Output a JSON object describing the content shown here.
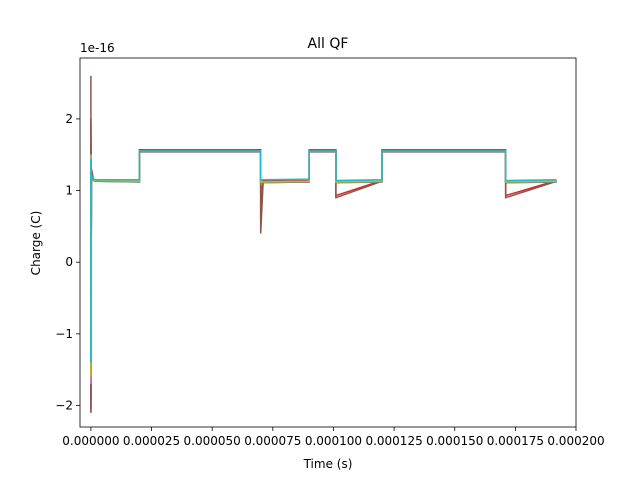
{
  "chart_data": {
    "type": "line",
    "title": "All QF",
    "xlabel": "Time (s)",
    "ylabel": "Charge (C)",
    "y_offset_label": "1e-16",
    "xlim": [
      -4.5e-06,
      0.0002
    ],
    "ylim": [
      -2.3,
      2.85
    ],
    "y_multiplier": 1e-16,
    "grid": false,
    "legend": "none",
    "x_ticks": [
      0,
      2.5e-05,
      5e-05,
      7.5e-05,
      0.0001,
      0.000125,
      0.00015,
      0.000175,
      0.0002
    ],
    "x_tick_labels": [
      "0.000000",
      "0.000025",
      "0.000050",
      "0.000075",
      "0.000100",
      "0.000125",
      "0.000150",
      "0.000175",
      "0.000200"
    ],
    "y_ticks": [
      -2,
      -1,
      0,
      1,
      2
    ],
    "y_tick_labels": [
      "−2",
      "−1",
      "0",
      "1",
      "2"
    ],
    "colors": [
      "#1f77b4",
      "#ff7f0e",
      "#2ca02c",
      "#d62728",
      "#9467bd",
      "#8c564b",
      "#e377c2",
      "#7f7f7f",
      "#bcbd22",
      "#17becf"
    ],
    "series": [
      {
        "color": "#1f77b4",
        "x": [
          0,
          0,
          0,
          2e-07,
          1e-06,
          2e-06,
          2e-05,
          2e-05,
          7e-05,
          7e-05,
          7.1e-05,
          9e-05,
          9e-05,
          0.000101,
          0.000101,
          0.00012,
          0.00012,
          0.000171,
          0.000171,
          0.000192
        ],
        "y": [
          1.0,
          1.9,
          -2.0,
          1.3,
          1.15,
          1.14,
          1.13,
          1.55,
          1.55,
          1.12,
          1.12,
          1.13,
          1.55,
          1.55,
          1.12,
          1.13,
          1.55,
          1.55,
          1.12,
          1.13
        ]
      },
      {
        "color": "#ff7f0e",
        "x": [
          0,
          0,
          0,
          2e-07,
          1e-06,
          2e-06,
          2e-05,
          2e-05,
          7e-05,
          7e-05,
          7.1e-05,
          9e-05,
          9e-05,
          0.000101,
          0.000101,
          0.00012,
          0.00012,
          0.000171,
          0.000171,
          0.000192
        ],
        "y": [
          1.1,
          1.7,
          -1.9,
          1.25,
          1.16,
          1.15,
          1.14,
          1.55,
          1.55,
          1.13,
          1.13,
          1.14,
          1.55,
          1.55,
          1.13,
          1.14,
          1.55,
          1.55,
          1.13,
          1.14
        ]
      },
      {
        "color": "#2ca02c",
        "x": [
          0,
          0,
          0,
          2e-07,
          1e-06,
          2e-06,
          2e-05,
          2e-05,
          7e-05,
          7e-05,
          7.1e-05,
          9e-05,
          9e-05,
          0.000101,
          0.000101,
          0.00012,
          0.00012,
          0.000171,
          0.000171,
          0.000192
        ],
        "y": [
          1.2,
          1.6,
          -1.8,
          1.22,
          1.15,
          1.14,
          1.13,
          1.55,
          1.55,
          0.95,
          1.12,
          1.13,
          1.55,
          1.55,
          1.12,
          1.13,
          1.55,
          1.55,
          1.12,
          1.13
        ]
      },
      {
        "color": "#d62728",
        "x": [
          0,
          0,
          0,
          2e-07,
          1e-06,
          2e-06,
          2e-05,
          2e-05,
          7e-05,
          7e-05,
          7.1e-05,
          9e-05,
          9e-05,
          0.000101,
          0.000101,
          0.00012,
          0.00012,
          0.000171,
          0.000171,
          0.000192
        ],
        "y": [
          1.0,
          2.0,
          -2.1,
          1.3,
          1.16,
          1.15,
          1.14,
          1.56,
          1.56,
          0.6,
          1.13,
          1.14,
          1.56,
          1.56,
          0.93,
          1.14,
          1.56,
          1.56,
          0.93,
          1.14
        ]
      },
      {
        "color": "#9467bd",
        "x": [
          0,
          0,
          0,
          2e-07,
          1e-06,
          2e-06,
          2e-05,
          2e-05,
          7e-05,
          7e-05,
          7.1e-05,
          9e-05,
          9e-05,
          0.000101,
          0.000101,
          0.00012,
          0.00012,
          0.000171,
          0.000171,
          0.000192
        ],
        "y": [
          0.9,
          1.8,
          -2.05,
          1.2,
          1.14,
          1.13,
          1.12,
          1.54,
          1.54,
          1.11,
          1.11,
          1.12,
          1.54,
          1.54,
          1.11,
          1.12,
          1.54,
          1.54,
          1.11,
          1.12
        ]
      },
      {
        "color": "#8c564b",
        "x": [
          0,
          0,
          0,
          2e-07,
          1e-06,
          2e-06,
          2e-05,
          2e-05,
          7e-05,
          7e-05,
          7.1e-05,
          9e-05,
          9e-05,
          0.000101,
          0.000101,
          0.00012,
          0.00012,
          0.000171,
          0.000171,
          0.000192
        ],
        "y": [
          1.0,
          2.6,
          -2.1,
          1.28,
          1.15,
          1.14,
          1.13,
          1.57,
          1.57,
          0.4,
          1.12,
          1.13,
          1.57,
          1.57,
          0.9,
          1.13,
          1.57,
          1.57,
          0.9,
          1.13
        ]
      },
      {
        "color": "#e377c2",
        "x": [
          0,
          0,
          0,
          2e-07,
          1e-06,
          2e-06,
          2e-05,
          2e-05,
          7e-05,
          7e-05,
          7.1e-05,
          9e-05,
          9e-05,
          0.000101,
          0.000101,
          0.00012,
          0.00012,
          0.000171,
          0.000171,
          0.000192
        ],
        "y": [
          1.1,
          1.5,
          -1.7,
          1.2,
          1.15,
          1.14,
          1.13,
          1.55,
          1.55,
          1.12,
          1.12,
          1.13,
          1.55,
          1.55,
          1.12,
          1.13,
          1.55,
          1.55,
          1.12,
          1.13
        ]
      },
      {
        "color": "#7f7f7f",
        "x": [
          0,
          0,
          0,
          2e-07,
          1e-06,
          2e-06,
          2e-05,
          2e-05,
          7e-05,
          7e-05,
          7.1e-05,
          9e-05,
          9e-05,
          0.000101,
          0.000101,
          0.00012,
          0.00012,
          0.000171,
          0.000171,
          0.000192
        ],
        "y": [
          1.2,
          1.4,
          -1.5,
          1.18,
          1.14,
          1.13,
          1.12,
          1.54,
          1.54,
          1.11,
          1.11,
          1.12,
          1.54,
          1.54,
          1.11,
          1.12,
          1.54,
          1.54,
          1.11,
          1.12
        ]
      },
      {
        "color": "#bcbd22",
        "x": [
          0,
          0,
          0,
          2e-07,
          1e-06,
          2e-06,
          2e-05,
          2e-05,
          7e-05,
          7e-05,
          7.1e-05,
          9e-05,
          9e-05,
          0.000101,
          0.000101,
          0.00012,
          0.00012,
          0.000171,
          0.000171,
          0.000192
        ],
        "y": [
          1.15,
          1.5,
          -1.6,
          1.2,
          1.15,
          1.14,
          1.13,
          1.55,
          1.55,
          1.12,
          1.12,
          1.13,
          1.55,
          1.55,
          1.12,
          1.13,
          1.55,
          1.55,
          1.12,
          1.13
        ]
      },
      {
        "color": "#17becf",
        "x": [
          0,
          0,
          0,
          2e-07,
          1e-06,
          2e-06,
          2e-05,
          2e-05,
          7e-05,
          7e-05,
          7.1e-05,
          9e-05,
          9e-05,
          0.000101,
          0.000101,
          0.00012,
          0.00012,
          0.000171,
          0.000171,
          0.000192
        ],
        "y": [
          1.3,
          1.45,
          -1.4,
          1.22,
          1.16,
          1.15,
          1.15,
          1.55,
          1.55,
          1.15,
          1.15,
          1.16,
          1.55,
          1.55,
          1.14,
          1.15,
          1.55,
          1.55,
          1.14,
          1.15
        ]
      }
    ]
  }
}
